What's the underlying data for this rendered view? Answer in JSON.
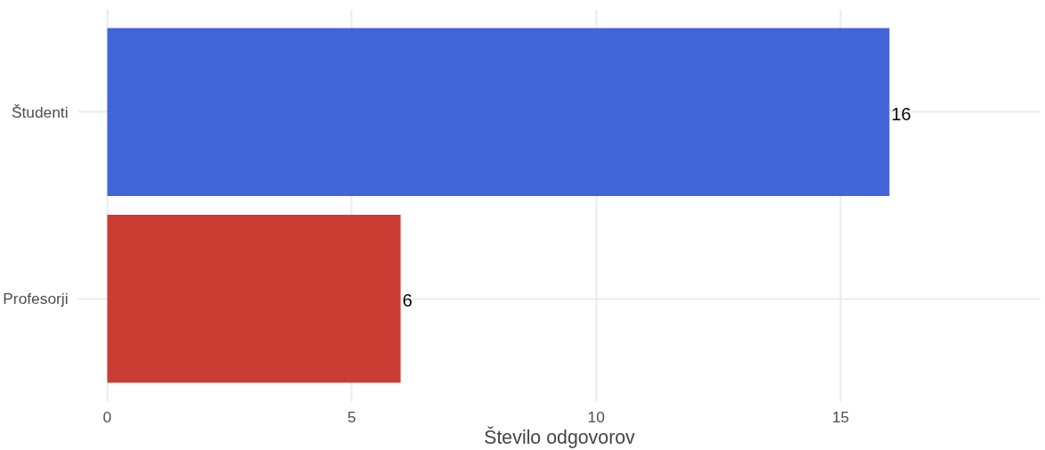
{
  "chart_data": {
    "type": "bar",
    "orientation": "horizontal",
    "xlabel": "Število odgovorov",
    "categories": [
      "Študenti",
      "Profesorji"
    ],
    "values": [
      16,
      6
    ],
    "colors": [
      "#4165d8",
      "#cb3d33"
    ],
    "xlim": [
      -0.6,
      19.1
    ],
    "xticks": [
      0,
      5,
      10,
      15
    ],
    "grid": true,
    "data_labels": true
  }
}
